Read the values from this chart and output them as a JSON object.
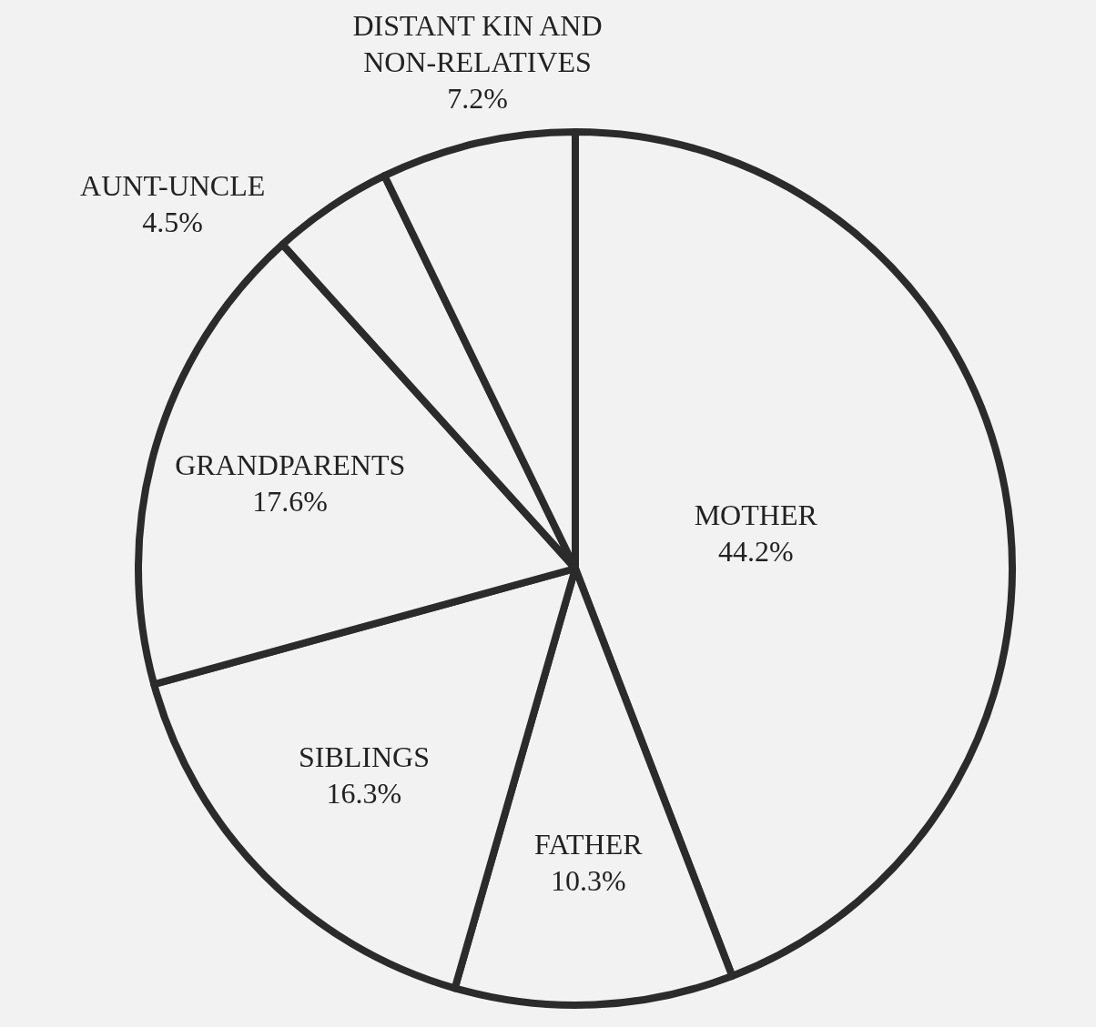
{
  "chart_data": {
    "type": "pie",
    "categories": [
      "MOTHER",
      "FATHER",
      "SIBLINGS",
      "GRANDPARENTS",
      "AUNT-UNCLE",
      "DISTANT KIN AND NON-RELATIVES"
    ],
    "values": [
      44.2,
      10.3,
      16.3,
      17.6,
      4.5,
      7.2
    ],
    "value_labels": [
      "44.2%",
      "10.3%",
      "16.3%",
      "17.6%",
      "4.5%",
      "7.2%"
    ],
    "colors": [
      "#f2f2f2",
      "#f2f2f2",
      "#f2f2f2",
      "#f2f2f2",
      "#f2f2f2",
      "#f2f2f2"
    ]
  }
}
